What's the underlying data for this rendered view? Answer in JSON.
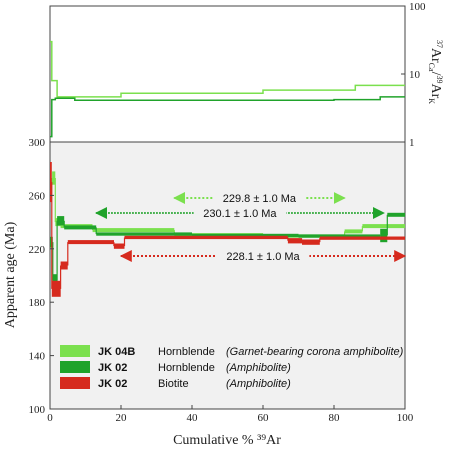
{
  "chart_data": {
    "type": "line",
    "xlabel": "Cumulative % ³⁹Ar",
    "x_ticks": [
      0,
      20,
      40,
      60,
      80,
      100
    ],
    "xlim": [
      0,
      100
    ],
    "age_panel": {
      "ylabel": "Apparent age (Ma)",
      "ylim": [
        100,
        300
      ],
      "y_ticks": [
        100,
        140,
        180,
        220,
        260,
        300
      ],
      "series": [
        {
          "id": "jk04b",
          "color": "#7be04e",
          "plateau_label": "229.8 ± 1.0 Ma",
          "plateau_range": [
            35,
            83
          ],
          "plateau_age": 229.8,
          "steps": [
            {
              "x0": 0,
              "x1": 0.6,
              "y": 268,
              "h": 10
            },
            {
              "x0": 0.6,
              "x1": 1.5,
              "y": 273,
              "h": 10
            },
            {
              "x0": 1.5,
              "x1": 3,
              "y": 240,
              "h": 6
            },
            {
              "x0": 3,
              "x1": 12,
              "y": 237,
              "h": 3
            },
            {
              "x0": 12,
              "x1": 35,
              "y": 234,
              "h": 3
            },
            {
              "x0": 35,
              "x1": 60,
              "y": 230.5,
              "h": 2.5
            },
            {
              "x0": 60,
              "x1": 83,
              "y": 229.5,
              "h": 2.5
            },
            {
              "x0": 83,
              "x1": 88,
              "y": 233,
              "h": 3
            },
            {
              "x0": 88,
              "x1": 100,
              "y": 237,
              "h": 3
            }
          ]
        },
        {
          "id": "jk02hb",
          "color": "#20a32b",
          "plateau_label": "230.1 ± 1.0 Ma",
          "plateau_range": [
            13,
            94
          ],
          "plateau_age": 230.1,
          "steps": [
            {
              "x0": 0,
              "x1": 0.8,
              "y": 225,
              "h": 8
            },
            {
              "x0": 0.8,
              "x1": 2,
              "y": 196,
              "h": 10
            },
            {
              "x0": 2,
              "x1": 4,
              "y": 241,
              "h": 7
            },
            {
              "x0": 4,
              "x1": 13,
              "y": 236,
              "h": 3
            },
            {
              "x0": 13,
              "x1": 40,
              "y": 231,
              "h": 2.5
            },
            {
              "x0": 40,
              "x1": 70,
              "y": 230,
              "h": 2.5
            },
            {
              "x0": 70,
              "x1": 93,
              "y": 229.5,
              "h": 2.5
            },
            {
              "x0": 93,
              "x1": 95,
              "y": 230,
              "h": 10
            },
            {
              "x0": 95,
              "x1": 100,
              "y": 245.5,
              "h": 3
            }
          ]
        },
        {
          "id": "jk02bt",
          "color": "#d62a1e",
          "plateau_label": "228.1 ± 1.0 Ma",
          "plateau_range": [
            20,
            100
          ],
          "plateau_age": 228.1,
          "steps": [
            {
              "x0": 0,
              "x1": 0.5,
              "y": 270,
              "h": 30
            },
            {
              "x0": 0.5,
              "x1": 3,
              "y": 190,
              "h": 12
            },
            {
              "x0": 3,
              "x1": 5,
              "y": 207.5,
              "h": 6
            },
            {
              "x0": 5,
              "x1": 18,
              "y": 225,
              "h": 3
            },
            {
              "x0": 18,
              "x1": 21,
              "y": 222,
              "h": 4
            },
            {
              "x0": 21,
              "x1": 67,
              "y": 228.5,
              "h": 2.5
            },
            {
              "x0": 67,
              "x1": 71,
              "y": 226,
              "h": 4
            },
            {
              "x0": 71,
              "x1": 76,
              "y": 225,
              "h": 4
            },
            {
              "x0": 76,
              "x1": 100,
              "y": 228,
              "h": 2.5
            }
          ]
        }
      ]
    },
    "ratio_panel": {
      "ylabel_parts": {
        "pre1": "37",
        "main1": "Ar",
        "sub1": "Ca",
        "slash": "/",
        "pre2": "39",
        "main2": "Ar",
        "sub2": "K"
      },
      "scale": "log",
      "ylim": [
        1,
        100
      ],
      "y_ticks": [
        1,
        10,
        100
      ],
      "series": [
        {
          "id": "jk04b_ratio",
          "color": "#7be04e",
          "steps": [
            {
              "x0": 0,
              "x1": 0.5,
              "y": 30
            },
            {
              "x0": 0.5,
              "x1": 2,
              "y": 8
            },
            {
              "x0": 2,
              "x1": 20,
              "y": 4.6
            },
            {
              "x0": 20,
              "x1": 60,
              "y": 5.2
            },
            {
              "x0": 60,
              "x1": 86,
              "y": 5.8
            },
            {
              "x0": 86,
              "x1": 100,
              "y": 6.8
            }
          ]
        },
        {
          "id": "jk02_ratio",
          "color": "#20a32b",
          "steps": [
            {
              "x0": 0,
              "x1": 0.5,
              "y": 1.2
            },
            {
              "x0": 0.5,
              "x1": 1.5,
              "y": 4.2
            },
            {
              "x0": 1.5,
              "x1": 7,
              "y": 4.4
            },
            {
              "x0": 7,
              "x1": 80,
              "y": 4.1
            },
            {
              "x0": 80,
              "x1": 93,
              "y": 4.2
            },
            {
              "x0": 93,
              "x1": 100,
              "y": 4.6
            }
          ]
        }
      ]
    },
    "legend": [
      {
        "color": "#7be04e",
        "sample": "JK 04B",
        "mineral": "Hornblende",
        "rock": "(Garnet-bearing corona amphibolite)"
      },
      {
        "color": "#20a32b",
        "sample": "JK 02",
        "mineral": "Hornblende",
        "rock": "(Amphibolite)"
      },
      {
        "color": "#d62a1e",
        "sample": "JK 02",
        "mineral": "Biotite",
        "rock": "(Amphibolite)"
      }
    ]
  }
}
